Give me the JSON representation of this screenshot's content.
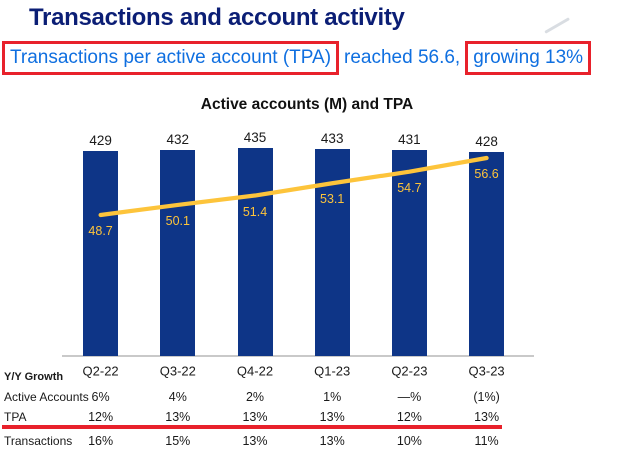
{
  "header": {
    "title": "Transactions and account activity",
    "subtitle": {
      "highlight1": "Transactions per active account (TPA)",
      "middle": "reached 56.6,",
      "highlight2": "growing 13%"
    }
  },
  "chart_data": {
    "type": "bar",
    "title": "Active accounts (M) and TPA",
    "categories": [
      "Q2-22",
      "Q3-22",
      "Q4-22",
      "Q1-23",
      "Q2-23",
      "Q3-23"
    ],
    "series": [
      {
        "name": "Active accounts (M)",
        "render_as": "bar",
        "values": [
          429,
          432,
          435,
          433,
          431,
          428
        ]
      },
      {
        "name": "TPA",
        "render_as": "line",
        "values": [
          48.7,
          50.1,
          51.4,
          53.1,
          54.7,
          56.6
        ]
      }
    ],
    "value_labels": true,
    "legend": "none",
    "grid": "off",
    "ylim_bars_start": 0
  },
  "table": {
    "corner_label": "Y/Y Growth",
    "columns": [
      "Q2-22",
      "Q3-22",
      "Q4-22",
      "Q1-23",
      "Q2-23",
      "Q3-23"
    ],
    "rows": [
      {
        "label": "Active Accounts",
        "values": [
          "6%",
          "4%",
          "2%",
          "1%",
          "—%",
          "(1%)"
        ],
        "highlighted": false
      },
      {
        "label": "TPA",
        "values": [
          "12%",
          "13%",
          "13%",
          "13%",
          "12%",
          "13%"
        ],
        "highlighted": true
      },
      {
        "label": "Transactions",
        "values": [
          "16%",
          "15%",
          "13%",
          "13%",
          "10%",
          "11%"
        ],
        "highlighted": false
      }
    ]
  },
  "colors": {
    "title_navy": "#0b1e75",
    "subtitle_blue": "#0f6fe0",
    "highlight_red": "#e8212b",
    "bar_navy": "#0e3587",
    "line_yellow": "#fdc43b",
    "text_dark": "#1a1a1a",
    "axis_gray": "#c9c9c9"
  }
}
